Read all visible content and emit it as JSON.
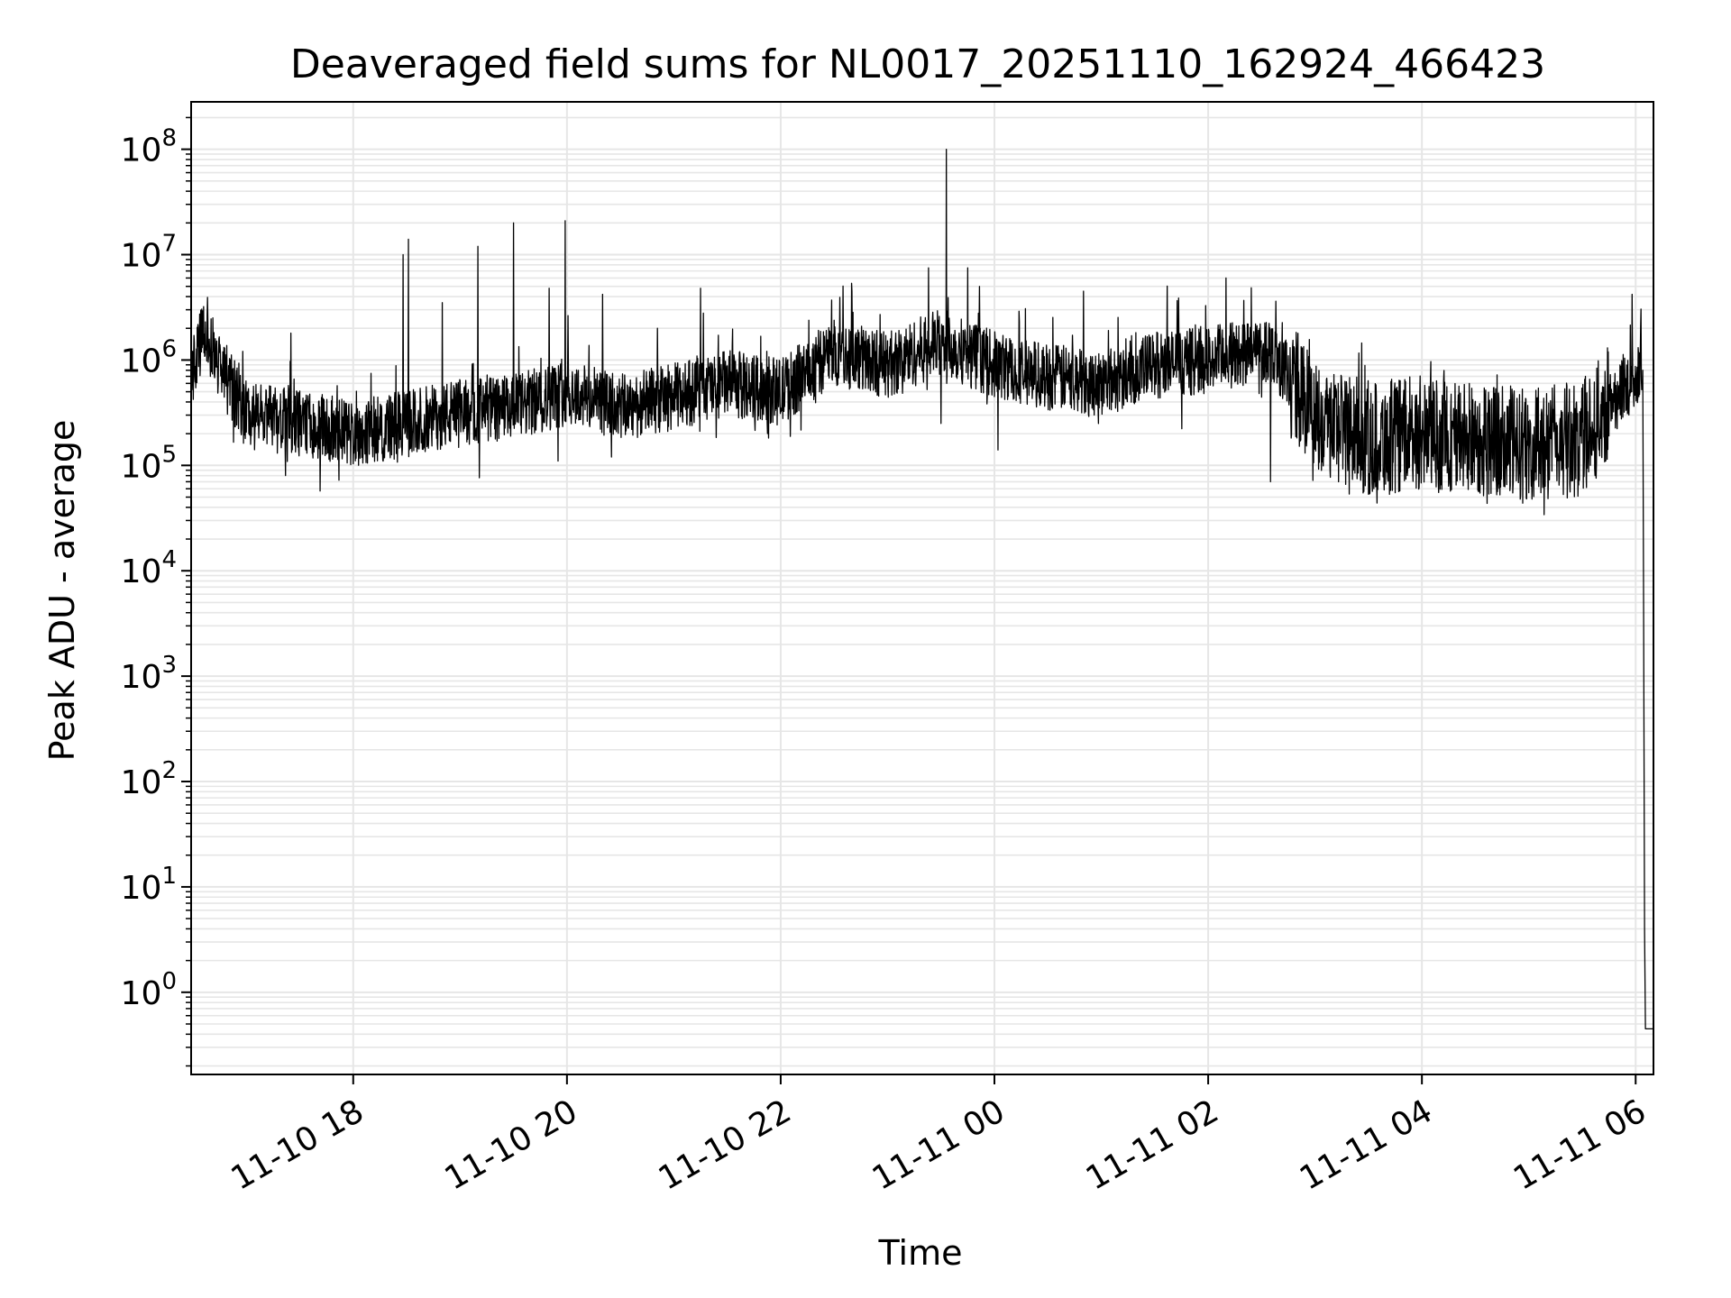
{
  "chart_data": {
    "type": "line",
    "title": "Deaveraged field sums for NL0017_20251110_162924_466423",
    "xlabel": "Time",
    "ylabel": "Peak ADU - average",
    "y_scale": "log",
    "grid": true,
    "line_color": "#000000",
    "grid_color": "#e6e6e6",
    "xlim": [
      "2025-11-10T16:29:00",
      "2025-11-11T06:10:00"
    ],
    "ylim_exponent": [
      -0.78,
      8.45
    ],
    "x_ticks": [
      {
        "label": "11-10 18",
        "time": "2025-11-10T18:00:00"
      },
      {
        "label": "11-10 20",
        "time": "2025-11-10T20:00:00"
      },
      {
        "label": "11-10 22",
        "time": "2025-11-10T22:00:00"
      },
      {
        "label": "11-11 00",
        "time": "2025-11-11T00:00:00"
      },
      {
        "label": "11-11 02",
        "time": "2025-11-11T02:00:00"
      },
      {
        "label": "11-11 04",
        "time": "2025-11-11T04:00:00"
      },
      {
        "label": "11-11 06",
        "time": "2025-11-11T06:00:00"
      }
    ],
    "y_ticks": [
      {
        "base": "10",
        "exp": "0",
        "value": 1
      },
      {
        "base": "10",
        "exp": "1",
        "value": 10
      },
      {
        "base": "10",
        "exp": "2",
        "value": 100
      },
      {
        "base": "10",
        "exp": "3",
        "value": 1000
      },
      {
        "base": "10",
        "exp": "4",
        "value": 10000
      },
      {
        "base": "10",
        "exp": "5",
        "value": 100000
      },
      {
        "base": "10",
        "exp": "6",
        "value": 1000000
      },
      {
        "base": "10",
        "exp": "7",
        "value": 10000000
      },
      {
        "base": "10",
        "exp": "8",
        "value": 100000000
      }
    ],
    "series": [
      {
        "baseline": [
          [
            "2025-11-10T16:29:00",
            700000
          ],
          [
            "2025-11-10T16:36:00",
            1800000
          ],
          [
            "2025-11-10T16:45:00",
            900000
          ],
          [
            "2025-11-10T17:00:00",
            300000
          ],
          [
            "2025-11-10T17:30:00",
            250000
          ],
          [
            "2025-11-10T18:00:00",
            200000
          ],
          [
            "2025-11-10T18:30:00",
            250000
          ],
          [
            "2025-11-10T19:00:00",
            320000
          ],
          [
            "2025-11-10T19:30:00",
            350000
          ],
          [
            "2025-11-10T20:00:00",
            500000
          ],
          [
            "2025-11-10T20:30:00",
            350000
          ],
          [
            "2025-11-10T21:00:00",
            450000
          ],
          [
            "2025-11-10T21:30:00",
            600000
          ],
          [
            "2025-11-10T22:00:00",
            500000
          ],
          [
            "2025-11-10T22:30:00",
            1200000
          ],
          [
            "2025-11-10T23:00:00",
            900000
          ],
          [
            "2025-11-10T23:30:00",
            1500000
          ],
          [
            "2025-11-11T00:00:00",
            900000
          ],
          [
            "2025-11-11T00:30:00",
            700000
          ],
          [
            "2025-11-11T01:00:00",
            600000
          ],
          [
            "2025-11-11T01:30:00",
            900000
          ],
          [
            "2025-11-11T02:00:00",
            1000000
          ],
          [
            "2025-11-11T02:35:00",
            1300000
          ],
          [
            "2025-11-11T03:00:00",
            300000
          ],
          [
            "2025-11-11T03:30:00",
            180000
          ],
          [
            "2025-11-11T04:00:00",
            200000
          ],
          [
            "2025-11-11T04:30:00",
            180000
          ],
          [
            "2025-11-11T05:00:00",
            150000
          ],
          [
            "2025-11-11T05:30:00",
            180000
          ],
          [
            "2025-11-11T05:50:00",
            500000
          ],
          [
            "2025-11-11T06:03:00",
            800000
          ]
        ],
        "spikes": [
          [
            "2025-11-10T16:37:00",
            2300000
          ],
          [
            "2025-11-10T17:25:00",
            1800000
          ],
          [
            "2025-11-10T18:28:00",
            10000000
          ],
          [
            "2025-11-10T18:31:00",
            14000000
          ],
          [
            "2025-11-10T18:50:00",
            3500000
          ],
          [
            "2025-11-10T19:10:00",
            12000000
          ],
          [
            "2025-11-10T19:30:00",
            20000000
          ],
          [
            "2025-11-10T19:50:00",
            4800000
          ],
          [
            "2025-11-10T19:59:00",
            21000000
          ],
          [
            "2025-11-10T20:20:00",
            4200000
          ],
          [
            "2025-11-10T21:15:00",
            4800000
          ],
          [
            "2025-11-10T22:40:00",
            4500000
          ],
          [
            "2025-11-10T23:23:00",
            7500000
          ],
          [
            "2025-11-10T23:33:00",
            100000000
          ],
          [
            "2025-11-10T23:45:00",
            7500000
          ],
          [
            "2025-11-11T00:50:00",
            4500000
          ],
          [
            "2025-11-11T02:10:00",
            6000000
          ],
          [
            "2025-11-11T02:35:00",
            5000000
          ],
          [
            "2025-11-11T05:58:00",
            4200000
          ]
        ],
        "dips": [
          [
            "2025-11-10T17:22:00",
            80000
          ],
          [
            "2025-11-10T19:55:00",
            110000
          ],
          [
            "2025-11-10T20:25:00",
            120000
          ],
          [
            "2025-11-10T23:30:00",
            250000
          ],
          [
            "2025-11-11T00:02:00",
            140000
          ],
          [
            "2025-11-11T02:35:00",
            70000
          ],
          [
            "2025-11-11T03:45:00",
            55000
          ],
          [
            "2025-11-11T05:00:00",
            55000
          ]
        ],
        "drop": [
          [
            "2025-11-11T06:04:00",
            800000
          ],
          [
            "2025-11-11T06:04:30",
            3000
          ],
          [
            "2025-11-11T06:05:00",
            4
          ],
          [
            "2025-11-11T06:05:30",
            0.45
          ],
          [
            "2025-11-11T06:10:00",
            0.45
          ]
        ]
      }
    ]
  }
}
